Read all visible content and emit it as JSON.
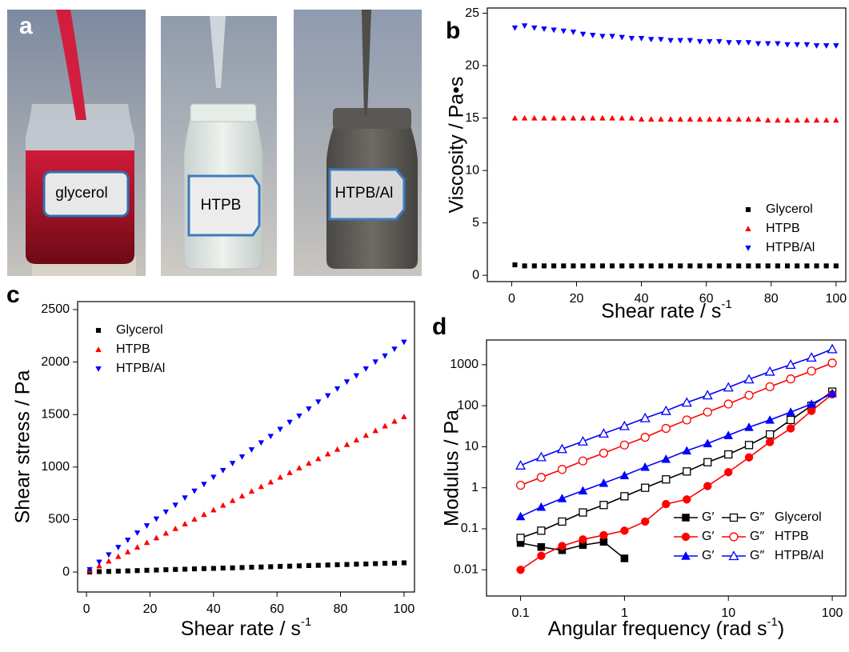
{
  "panel_a": {
    "label": "a",
    "photos": [
      "glycerol",
      "HTPB",
      "HTPB/Al"
    ]
  },
  "chart_data": [
    {
      "type": "scatter",
      "label": "b",
      "ylabel": "Viscosity / Pa•s",
      "xlabel": [
        "Shear rate / s",
        "-1"
      ],
      "xlim": [
        -7.5,
        103
      ],
      "xticks": [
        0,
        20,
        40,
        60,
        80,
        100
      ],
      "ylim": [
        -0.6,
        25.5
      ],
      "yticks": [
        0,
        5,
        10,
        15,
        20,
        25
      ],
      "legend": "lower right",
      "x": [
        1,
        4,
        7,
        10,
        13,
        16,
        19,
        22,
        25,
        28,
        31,
        34,
        37,
        40,
        43,
        46,
        49,
        52,
        55,
        58,
        61,
        64,
        67,
        70,
        73,
        76,
        79,
        82,
        85,
        88,
        91,
        94,
        97,
        100
      ],
      "series": [
        {
          "name": "Glycerol",
          "color": "#000000",
          "marker": "square",
          "values": [
            1.0,
            0.9,
            0.9,
            0.9,
            0.9,
            0.9,
            0.9,
            0.9,
            0.9,
            0.9,
            0.9,
            0.9,
            0.9,
            0.9,
            0.9,
            0.9,
            0.9,
            0.9,
            0.9,
            0.9,
            0.9,
            0.9,
            0.9,
            0.9,
            0.9,
            0.9,
            0.9,
            0.9,
            0.9,
            0.9,
            0.9,
            0.9,
            0.9,
            0.9
          ]
        },
        {
          "name": "HTPB",
          "color": "#ff0000",
          "marker": "triangle-up",
          "values": [
            15.0,
            15.0,
            15.0,
            15.0,
            15.0,
            15.0,
            15.0,
            15.0,
            15.0,
            15.0,
            15.0,
            15.0,
            15.0,
            14.9,
            14.9,
            14.9,
            14.9,
            14.9,
            14.9,
            14.9,
            14.9,
            14.9,
            14.9,
            14.9,
            14.9,
            14.9,
            14.8,
            14.8,
            14.8,
            14.8,
            14.8,
            14.8,
            14.8,
            14.8
          ]
        },
        {
          "name": "HTPB/Al",
          "color": "#0000ff",
          "marker": "triangle-down",
          "values": [
            23.6,
            23.8,
            23.6,
            23.5,
            23.4,
            23.3,
            23.2,
            23.0,
            22.9,
            22.8,
            22.8,
            22.7,
            22.6,
            22.6,
            22.5,
            22.5,
            22.4,
            22.4,
            22.4,
            22.3,
            22.3,
            22.3,
            22.2,
            22.2,
            22.2,
            22.1,
            22.1,
            22.1,
            22.0,
            22.0,
            22.0,
            21.9,
            21.9,
            21.9
          ]
        }
      ]
    },
    {
      "type": "scatter",
      "label": "c",
      "ylabel": "Shear stress / Pa",
      "xlabel": [
        "Shear rate / s",
        "-1"
      ],
      "xlim": [
        -2.8,
        103.3
      ],
      "xticks": [
        0,
        20,
        40,
        60,
        80,
        100
      ],
      "ylim": [
        -190,
        2576
      ],
      "yticks": [
        0,
        500,
        1000,
        1500,
        2000,
        2500
      ],
      "legend": "upper left",
      "x": [
        1,
        4,
        7,
        10,
        13,
        16,
        19,
        22,
        25,
        28,
        31,
        34,
        37,
        40,
        43,
        46,
        49,
        52,
        55,
        58,
        61,
        64,
        67,
        70,
        73,
        76,
        79,
        82,
        85,
        88,
        91,
        94,
        97,
        100
      ],
      "series": [
        {
          "name": "Glycerol",
          "color": "#000000",
          "marker": "square",
          "values": [
            1,
            4,
            6,
            9,
            11,
            14,
            17,
            19,
            22,
            25,
            27,
            30,
            33,
            35,
            38,
            40,
            43,
            46,
            48,
            51,
            54,
            56,
            59,
            62,
            64,
            67,
            70,
            72,
            75,
            77,
            80,
            83,
            85,
            88
          ]
        },
        {
          "name": "HTPB",
          "color": "#ff0000",
          "marker": "triangle-up",
          "values": [
            15,
            59,
            104,
            148,
            192,
            237,
            281,
            326,
            370,
            414,
            459,
            503,
            548,
            592,
            636,
            681,
            725,
            770,
            814,
            858,
            903,
            947,
            992,
            1036,
            1080,
            1125,
            1169,
            1214,
            1258,
            1302,
            1347,
            1391,
            1436,
            1480
          ]
        },
        {
          "name": "HTPB/Al",
          "color": "#0000ff",
          "marker": "triangle-down",
          "values": [
            24,
            95,
            165,
            235,
            304,
            373,
            441,
            506,
            573,
            638,
            707,
            772,
            836,
            904,
            968,
            1035,
            1098,
            1165,
            1232,
            1293,
            1360,
            1427,
            1487,
            1554,
            1621,
            1680,
            1746,
            1812,
            1870,
            1936,
            2002,
            2059,
            2124,
            2190
          ]
        }
      ]
    },
    {
      "type": "line",
      "label": "d",
      "ylabel": "Modulus / Pa",
      "xlabel": [
        "Angular frequency (rad s",
        "-1",
        ")"
      ],
      "xlog": true,
      "ylog": true,
      "xlim": [
        0.047,
        135
      ],
      "xticks": [
        0.1,
        1,
        10,
        100
      ],
      "ylim": [
        0.0023,
        4000
      ],
      "yticks": [
        0.01,
        0.1,
        1,
        10,
        100,
        1000
      ],
      "legend": "lower right",
      "legend_groups": [
        "Glycerol",
        "HTPB",
        "HTPB/Al"
      ],
      "x": [
        0.1,
        0.158,
        0.251,
        0.398,
        0.631,
        1,
        1.58,
        2.51,
        3.98,
        6.31,
        10,
        15.8,
        25.1,
        39.8,
        63.1,
        100
      ],
      "series": [
        {
          "name": "G′",
          "color": "#000000",
          "marker": "square",
          "open": false,
          "values": [
            0.045,
            0.036,
            0.03,
            0.04,
            0.048,
            0.019,
            null,
            null,
            null,
            null,
            null,
            null,
            null,
            null,
            null,
            null
          ]
        },
        {
          "name": "G″",
          "color": "#000000",
          "marker": "square",
          "open": true,
          "values": [
            0.06,
            0.09,
            0.15,
            0.25,
            0.38,
            0.62,
            1.0,
            1.6,
            2.5,
            4.2,
            6.5,
            11,
            20,
            45,
            100,
            220
          ]
        },
        {
          "name": "G′",
          "color": "#ff0000",
          "marker": "circle",
          "open": false,
          "values": [
            0.01,
            0.022,
            0.038,
            0.055,
            0.07,
            0.09,
            0.15,
            0.4,
            0.52,
            1.1,
            2.4,
            5.5,
            13,
            28,
            75,
            190
          ]
        },
        {
          "name": "G″",
          "color": "#ff0000",
          "marker": "circle",
          "open": true,
          "values": [
            1.15,
            1.8,
            2.8,
            4.5,
            7,
            11,
            17,
            28,
            45,
            70,
            110,
            180,
            290,
            450,
            700,
            1100
          ]
        },
        {
          "name": "G′",
          "color": "#0000ff",
          "marker": "triangle-up",
          "open": false,
          "values": [
            0.2,
            0.34,
            0.55,
            0.85,
            1.3,
            2.0,
            3.2,
            5,
            8,
            12,
            19,
            30,
            45,
            70,
            110,
            200
          ]
        },
        {
          "name": "G″",
          "color": "#0000ff",
          "marker": "triangle-up",
          "open": true,
          "values": [
            3.5,
            5.6,
            8.8,
            13.5,
            21,
            32,
            50,
            75,
            120,
            180,
            280,
            440,
            680,
            1000,
            1500,
            2400
          ]
        }
      ]
    }
  ]
}
